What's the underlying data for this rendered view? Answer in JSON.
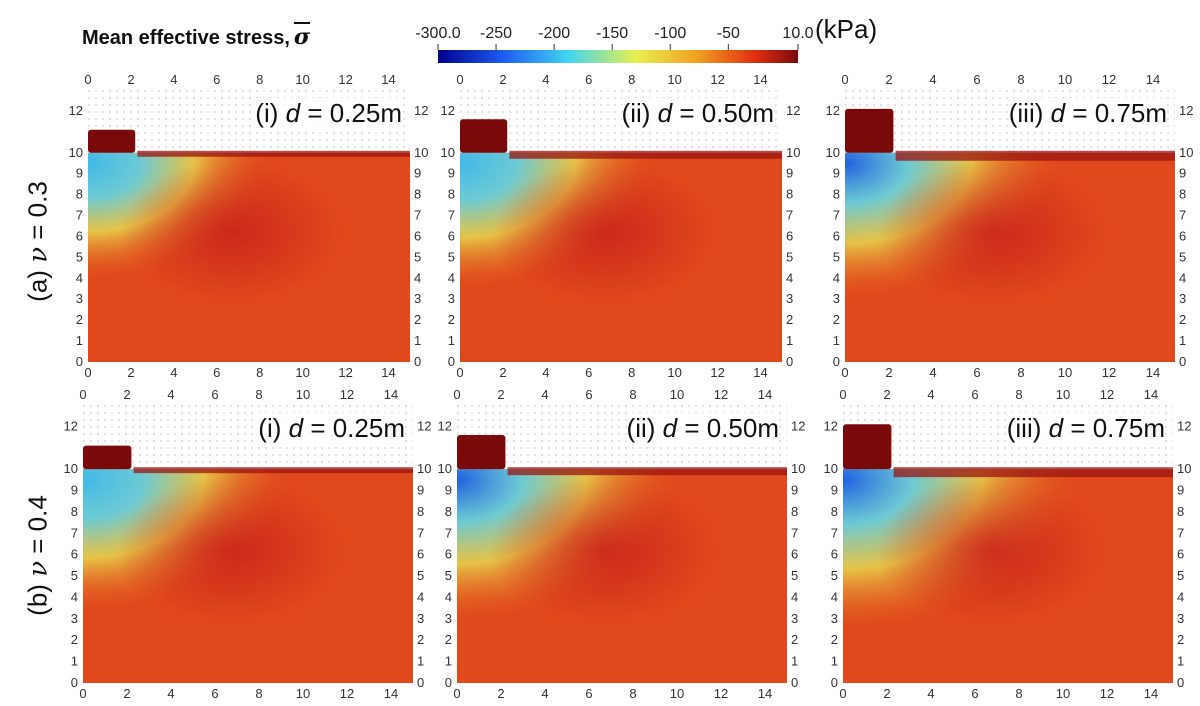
{
  "colorbar": {
    "title": "Mean effective stress,",
    "symbol": "σ",
    "unit": "(kPa)",
    "tick_labels": [
      "-300.0",
      "-250",
      "-200",
      "-150",
      "-100",
      "-50",
      "10.0"
    ],
    "tick_values": [
      -300,
      -250,
      -200,
      -150,
      -100,
      -50,
      10
    ],
    "colors": [
      "#00008c",
      "#1e5af0",
      "#40d4f0",
      "#e8f050",
      "#f0a020",
      "#e03010",
      "#7a0a0a"
    ]
  },
  "rows": [
    {
      "label_prefix": "(a)",
      "symbol": "ν",
      "label_suffix": "= 0.3",
      "nu": 0.3
    },
    {
      "label_prefix": "(b)",
      "symbol": "ν",
      "label_suffix": "= 0.4",
      "nu": 0.4
    }
  ],
  "panels": [
    {
      "title_prefix": "(i)",
      "var": "d",
      "title_suffix": "= 0.25m",
      "d": 0.25
    },
    {
      "title_prefix": "(ii)",
      "var": "d",
      "title_suffix": "= 0.50m",
      "d": 0.5
    },
    {
      "title_prefix": "(iii)",
      "var": "d",
      "title_suffix": "= 0.75m",
      "d": 0.75
    }
  ],
  "axes": {
    "x_ticks": [
      "0",
      "2",
      "4",
      "6",
      "8",
      "10",
      "12",
      "14"
    ],
    "y_ticks": [
      "0",
      "1",
      "2",
      "3",
      "4",
      "5",
      "6",
      "7",
      "8",
      "9",
      "10",
      "12"
    ],
    "x_range": [
      0,
      15
    ],
    "y_range": [
      0,
      13
    ]
  }
}
